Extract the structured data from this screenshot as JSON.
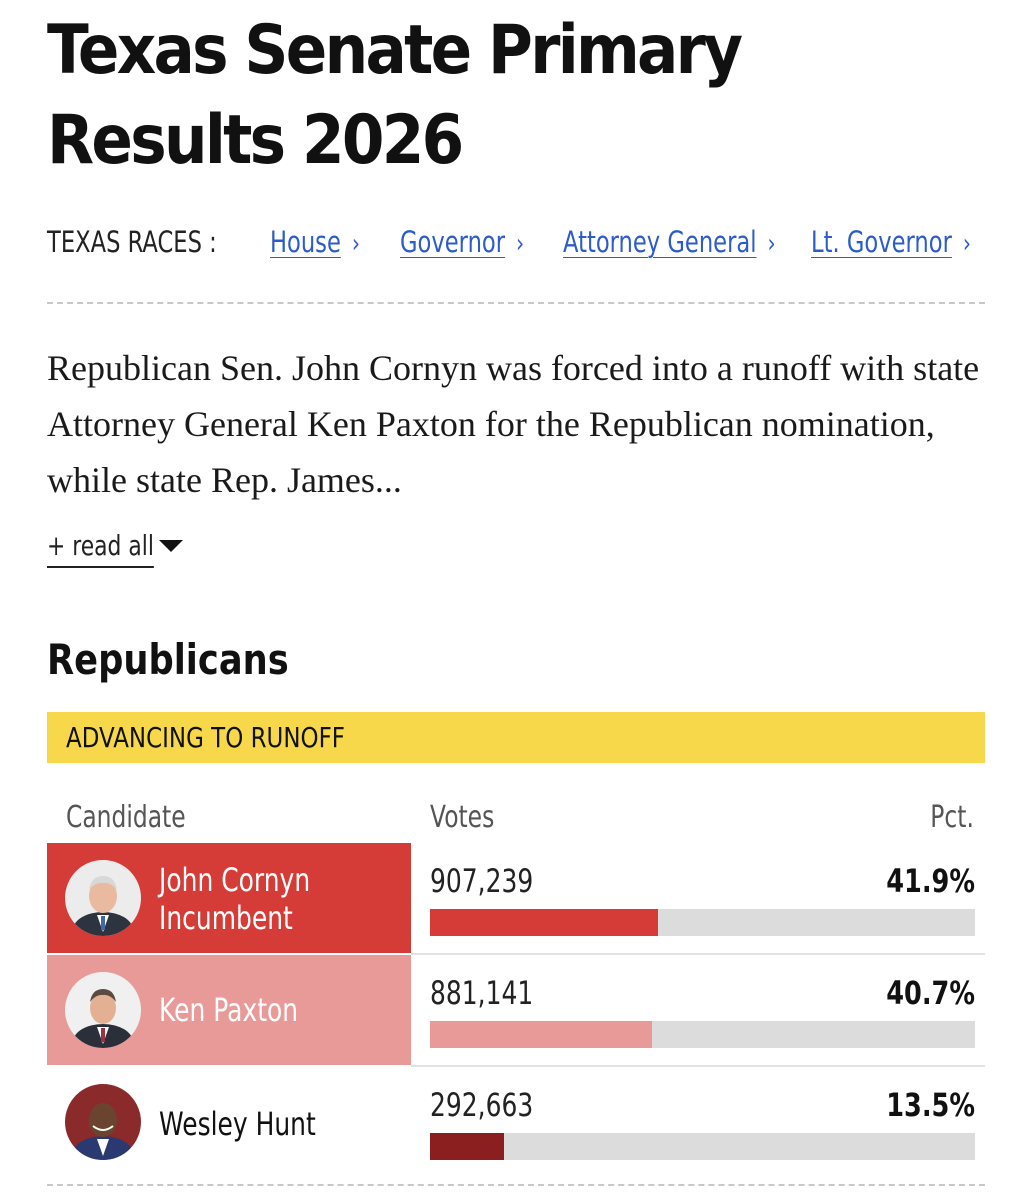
{
  "page_title": "Texas Senate Primary Results 2026",
  "races_nav": {
    "label": "TEXAS RACES :",
    "links": [
      {
        "label": "House"
      },
      {
        "label": "Governor"
      },
      {
        "label": "Attorney General"
      },
      {
        "label": "Lt. Governor"
      }
    ]
  },
  "summary": "Republican Sen. John Cornyn was forced into a runoff with state Attorney General Ken Paxton for the Republican nomination, while state Rep. James...",
  "read_all_label": "+ read all",
  "party_heading": "Republicans",
  "runoff_banner": "ADVANCING TO RUNOFF",
  "table": {
    "headers": {
      "candidate": "Candidate",
      "votes": "Votes",
      "pct": "Pct."
    },
    "rows": [
      {
        "name": "John Cornyn",
        "status": "Incumbent",
        "votes": "907,239",
        "pct": "41.9%",
        "share": 0.419,
        "bar_color": "#d63c37",
        "cell_color": "#d63c37",
        "text_color": "#ffffff"
      },
      {
        "name": "Ken Paxton",
        "status": "",
        "votes": "881,141",
        "pct": "40.7%",
        "share": 0.407,
        "bar_color": "#e89a98",
        "cell_color": "#e89a98",
        "text_color": "#ffffff"
      },
      {
        "name": "Wesley Hunt",
        "status": "",
        "votes": "292,663",
        "pct": "13.5%",
        "share": 0.135,
        "bar_color": "#8b1f1f",
        "cell_color": "#ffffff",
        "text_color": "#111111"
      }
    ]
  },
  "colors": {
    "link": "#2c5cc9",
    "banner": "#f7d84a",
    "bar_track": "#dcdcdc"
  }
}
